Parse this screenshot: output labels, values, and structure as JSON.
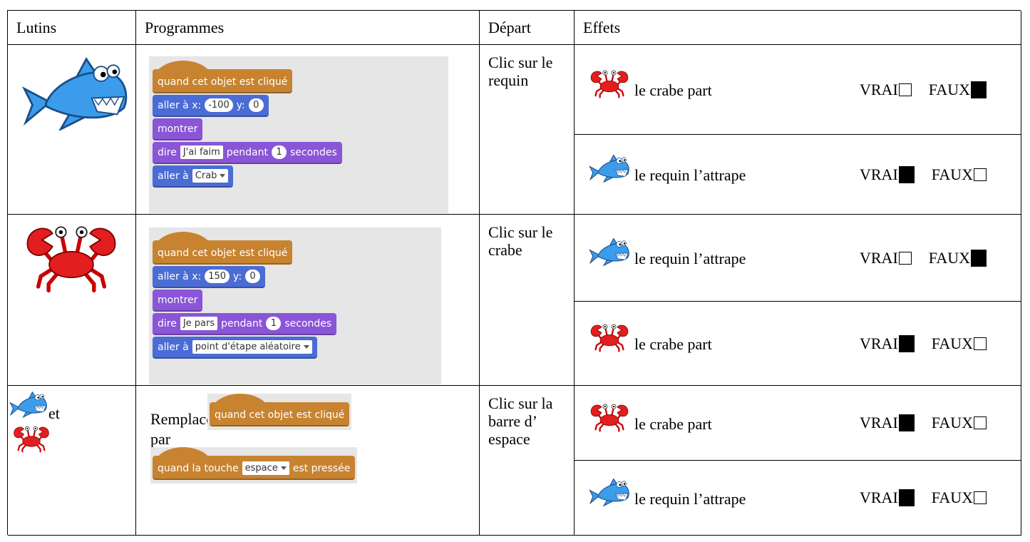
{
  "table": {
    "headers": [
      "Lutins",
      "Programmes",
      "Départ",
      "Effets"
    ],
    "rows": [
      {
        "program": [
          {
            "kind": "hat",
            "color": "#c88330",
            "parts": [
              "quand cet objet est cliqué"
            ]
          },
          {
            "kind": "stack",
            "color": "#4a6cd4",
            "parts": [
              "aller à x:",
              {
                "input": "-100",
                "shape": "round"
              },
              "y:",
              {
                "input": "0",
                "shape": "round"
              }
            ]
          },
          {
            "kind": "stack",
            "color": "#8a55d7",
            "parts": [
              "montrer"
            ]
          },
          {
            "kind": "stack",
            "color": "#8a55d7",
            "parts": [
              "dire",
              {
                "input": "J'ai faim",
                "shape": "text"
              },
              "pendant",
              {
                "input": "1",
                "shape": "round"
              },
              "secondes"
            ]
          },
          {
            "kind": "stack",
            "color": "#4a6cd4",
            "parts": [
              "aller à",
              {
                "input": "Crab",
                "shape": "menu"
              }
            ]
          }
        ],
        "start": "Clic sur le requin",
        "effects": [
          {
            "text": "le crabe part",
            "options": [
              {
                "label": "VRAI",
                "checked": false
              },
              {
                "label": "FAUX",
                "checked": true
              }
            ]
          },
          {
            "text": "le requin l’attrape",
            "options": [
              {
                "label": "VRAI",
                "checked": true
              },
              {
                "label": "FAUX",
                "checked": false
              }
            ]
          }
        ]
      },
      {
        "program": [
          {
            "kind": "hat",
            "color": "#c88330",
            "parts": [
              "quand cet objet est cliqué"
            ]
          },
          {
            "kind": "stack",
            "color": "#4a6cd4",
            "parts": [
              "aller à x:",
              {
                "input": "150",
                "shape": "round"
              },
              "y:",
              {
                "input": "0",
                "shape": "round"
              }
            ]
          },
          {
            "kind": "stack",
            "color": "#8a55d7",
            "parts": [
              "montrer"
            ]
          },
          {
            "kind": "stack",
            "color": "#8a55d7",
            "parts": [
              "dire",
              {
                "input": "Je pars",
                "shape": "text"
              },
              "pendant",
              {
                "input": "1",
                "shape": "round"
              },
              "secondes"
            ]
          },
          {
            "kind": "stack",
            "color": "#4a6cd4",
            "parts": [
              "aller à",
              {
                "input": "point d'étape aléatoire",
                "shape": "menu"
              }
            ]
          }
        ],
        "start": "Clic sur le crabe",
        "effects": [
          {
            "text": "le requin l’attrape",
            "options": [
              {
                "label": "VRAI",
                "checked": false
              },
              {
                "label": "FAUX",
                "checked": true
              }
            ]
          },
          {
            "text": "le crabe part",
            "options": [
              {
                "label": "VRAI",
                "checked": true
              },
              {
                "label": "FAUX",
                "checked": false
              }
            ]
          }
        ]
      },
      {
        "sprites_text": "et",
        "program": {
          "replace": "Remplace",
          "old": {
            "kind": "hat",
            "color": "#c88330",
            "parts": [
              "quand cet objet est cliqué"
            ]
          },
          "by": "par",
          "new": {
            "kind": "hat",
            "color": "#c88330",
            "parts": [
              "quand la touche",
              {
                "input": "espace",
                "shape": "menu"
              },
              "est pressée"
            ]
          }
        },
        "start": "Clic sur la barre d’ espace",
        "effects": [
          {
            "text": "le crabe part",
            "options": [
              {
                "label": "VRAI",
                "checked": true
              },
              {
                "label": "FAUX",
                "checked": false
              }
            ]
          },
          {
            "text": "le requin l’attrape",
            "options": [
              {
                "label": "VRAI",
                "checked": true
              },
              {
                "label": "FAUX",
                "checked": false
              }
            ]
          }
        ]
      }
    ]
  }
}
